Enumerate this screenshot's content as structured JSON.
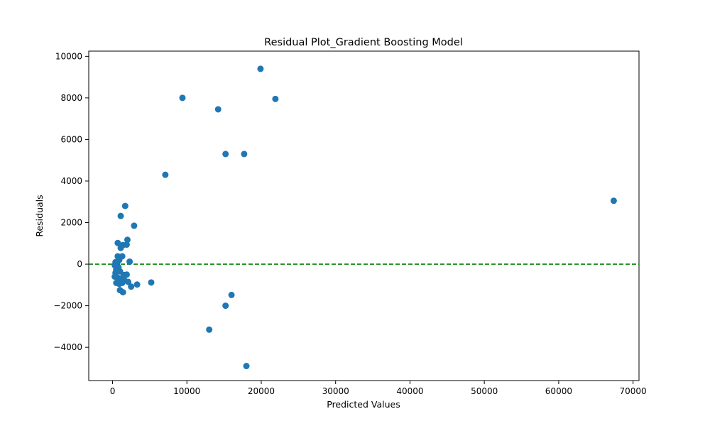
{
  "chart_data": {
    "type": "scatter",
    "title": "Residual Plot_Gradient Boosting Model",
    "xlabel": "Predicted Values",
    "ylabel": "Residuals",
    "xlim": [
      -3200,
      70800
    ],
    "ylim": [
      -5600,
      10250
    ],
    "xticks": [
      0,
      10000,
      20000,
      30000,
      40000,
      50000,
      60000,
      70000
    ],
    "yticks": [
      -4000,
      -2000,
      0,
      2000,
      4000,
      6000,
      8000,
      10000
    ],
    "xtick_labels": [
      "0",
      "10000",
      "20000",
      "30000",
      "40000",
      "50000",
      "60000",
      "70000"
    ],
    "ytick_labels": [
      "−4000",
      "−2000",
      "0",
      "2000",
      "4000",
      "6000",
      "8000",
      "10000"
    ],
    "grid": false,
    "point_color": "#1f77b4",
    "reference_line": {
      "y": 0,
      "color": "#008000",
      "style": "dashed"
    },
    "points": [
      {
        "x": 19900,
        "y": 9400
      },
      {
        "x": 9400,
        "y": 8000
      },
      {
        "x": 21900,
        "y": 7950
      },
      {
        "x": 14200,
        "y": 7450
      },
      {
        "x": 15200,
        "y": 5300
      },
      {
        "x": 17700,
        "y": 5300
      },
      {
        "x": 7100,
        "y": 4300
      },
      {
        "x": 67400,
        "y": 3050
      },
      {
        "x": 1700,
        "y": 2800
      },
      {
        "x": 1100,
        "y": 2320
      },
      {
        "x": 2900,
        "y": 1850
      },
      {
        "x": 2000,
        "y": 1170
      },
      {
        "x": 700,
        "y": 1020
      },
      {
        "x": 1400,
        "y": 920
      },
      {
        "x": 1900,
        "y": 940
      },
      {
        "x": 1100,
        "y": 780
      },
      {
        "x": 700,
        "y": 380
      },
      {
        "x": 1300,
        "y": 380
      },
      {
        "x": 900,
        "y": 200
      },
      {
        "x": 2300,
        "y": 120
      },
      {
        "x": 400,
        "y": 100
      },
      {
        "x": 600,
        "y": 30
      },
      {
        "x": 300,
        "y": -50
      },
      {
        "x": 800,
        "y": -150
      },
      {
        "x": 500,
        "y": -250
      },
      {
        "x": 1000,
        "y": -350
      },
      {
        "x": 400,
        "y": -420
      },
      {
        "x": 1500,
        "y": -520
      },
      {
        "x": 1900,
        "y": -500
      },
      {
        "x": 300,
        "y": -600
      },
      {
        "x": 700,
        "y": -650
      },
      {
        "x": 1100,
        "y": -700
      },
      {
        "x": 1600,
        "y": -780
      },
      {
        "x": 2100,
        "y": -850
      },
      {
        "x": 500,
        "y": -900
      },
      {
        "x": 900,
        "y": -950
      },
      {
        "x": 1300,
        "y": -900
      },
      {
        "x": 3300,
        "y": -980
      },
      {
        "x": 5200,
        "y": -880
      },
      {
        "x": 2500,
        "y": -1080
      },
      {
        "x": 1000,
        "y": -1250
      },
      {
        "x": 1400,
        "y": -1350
      },
      {
        "x": 16000,
        "y": -1480
      },
      {
        "x": 15200,
        "y": -2000
      },
      {
        "x": 13000,
        "y": -3150
      },
      {
        "x": 18000,
        "y": -4900
      }
    ]
  }
}
